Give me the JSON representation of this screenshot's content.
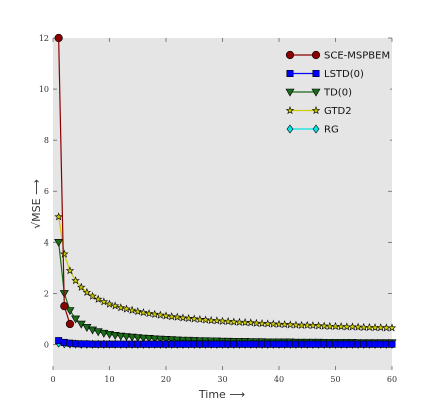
{
  "chart_data": {
    "type": "line",
    "xlabel": "Time ⟶",
    "ylabel": "√MSE ⟶",
    "xlim": [
      0,
      60
    ],
    "ylim": [
      -1,
      12
    ],
    "xticks": [
      "0",
      "10",
      "20",
      "30",
      "40",
      "50",
      "60"
    ],
    "yticks": [
      "0",
      "2",
      "4",
      "6",
      "8",
      "10",
      "12"
    ],
    "grid": false,
    "legend_position": "top-right",
    "series": [
      {
        "name": "SCE-MSPBEM",
        "color": "#8b0000",
        "marker": "circle",
        "x": [
          1,
          2,
          3
        ],
        "y": [
          12,
          1.5,
          0.8
        ]
      },
      {
        "name": "LSTD(0)",
        "color": "#0000ff",
        "marker": "square",
        "x": [
          1,
          2,
          3,
          4,
          5,
          6,
          7,
          8,
          9,
          10,
          11,
          12,
          13,
          14,
          15,
          16,
          17,
          18,
          19,
          20,
          21,
          22,
          23,
          24,
          25,
          26,
          27,
          28,
          29,
          30,
          31,
          32,
          33,
          34,
          35,
          36,
          37,
          38,
          39,
          40,
          41,
          42,
          43,
          44,
          45,
          46,
          47,
          48,
          49,
          50,
          51,
          52,
          53,
          54,
          55,
          56,
          57,
          58,
          59,
          60
        ],
        "y": [
          0.15,
          0.08,
          0.05,
          0.03,
          0.02,
          0.02,
          0.01,
          0.01,
          0.01,
          0.01,
          0.01,
          0.01,
          0.01,
          0.01,
          0.01,
          0.01,
          0.01,
          0.01,
          0.01,
          0.01,
          0.01,
          0.01,
          0.01,
          0.01,
          0.01,
          0.01,
          0.01,
          0.01,
          0.01,
          0.01,
          0.01,
          0.01,
          0.01,
          0.01,
          0.01,
          0.01,
          0.01,
          0.01,
          0.01,
          0.01,
          0.01,
          0.01,
          0.01,
          0.01,
          0.01,
          0.01,
          0.01,
          0.01,
          0.01,
          0.01,
          0.01,
          0.01,
          0.01,
          0.01,
          0.01,
          0.01,
          0.01,
          0.01,
          0.01,
          0.01
        ]
      },
      {
        "name": "TD(0)",
        "color": "#1a6b1a",
        "marker": "triangle-down",
        "x": [
          1,
          2,
          3,
          4,
          5,
          6,
          7,
          8,
          9,
          10,
          11,
          12,
          13,
          14,
          15,
          16,
          17,
          18,
          19,
          20,
          21,
          22,
          23,
          24,
          25,
          26,
          27,
          28,
          29,
          30,
          31,
          32,
          33,
          34,
          35,
          36,
          37,
          38,
          39,
          40,
          41,
          42,
          43,
          44,
          45,
          46,
          47,
          48,
          49,
          50,
          51,
          52,
          53,
          54,
          55,
          56,
          57,
          58,
          59,
          60
        ],
        "y": [
          4.0,
          2.0,
          1.33,
          1.0,
          0.8,
          0.67,
          0.57,
          0.5,
          0.44,
          0.4,
          0.36,
          0.33,
          0.31,
          0.29,
          0.27,
          0.25,
          0.24,
          0.22,
          0.21,
          0.2,
          0.19,
          0.18,
          0.17,
          0.17,
          0.16,
          0.15,
          0.15,
          0.14,
          0.14,
          0.13,
          0.13,
          0.12,
          0.12,
          0.12,
          0.11,
          0.11,
          0.11,
          0.1,
          0.1,
          0.1,
          0.1,
          0.1,
          0.09,
          0.09,
          0.09,
          0.09,
          0.09,
          0.08,
          0.08,
          0.08,
          0.08,
          0.08,
          0.08,
          0.07,
          0.07,
          0.07,
          0.07,
          0.07,
          0.07,
          0.07
        ]
      },
      {
        "name": "GTD2",
        "color": "#cccc00",
        "marker": "star",
        "x": [
          1,
          2,
          3,
          4,
          5,
          6,
          7,
          8,
          9,
          10,
          11,
          12,
          13,
          14,
          15,
          16,
          17,
          18,
          19,
          20,
          21,
          22,
          23,
          24,
          25,
          26,
          27,
          28,
          29,
          30,
          31,
          32,
          33,
          34,
          35,
          36,
          37,
          38,
          39,
          40,
          41,
          42,
          43,
          44,
          45,
          46,
          47,
          48,
          49,
          50,
          51,
          52,
          53,
          54,
          55,
          56,
          57,
          58,
          59,
          60
        ],
        "y": [
          5.0,
          3.54,
          2.89,
          2.5,
          2.24,
          2.04,
          1.89,
          1.77,
          1.67,
          1.58,
          1.51,
          1.44,
          1.39,
          1.34,
          1.29,
          1.25,
          1.21,
          1.18,
          1.15,
          1.12,
          1.09,
          1.07,
          1.04,
          1.02,
          1.0,
          0.98,
          0.96,
          0.94,
          0.93,
          0.91,
          0.9,
          0.88,
          0.87,
          0.86,
          0.85,
          0.83,
          0.82,
          0.81,
          0.8,
          0.79,
          0.78,
          0.77,
          0.76,
          0.75,
          0.75,
          0.74,
          0.73,
          0.72,
          0.71,
          0.71,
          0.7,
          0.69,
          0.69,
          0.68,
          0.67,
          0.67,
          0.66,
          0.66,
          0.65,
          0.65
        ]
      },
      {
        "name": "RG",
        "color": "#00e5e5",
        "marker": "diamond",
        "x": [
          1,
          2,
          3,
          4,
          5,
          6,
          7,
          8,
          9,
          10,
          11,
          12,
          13,
          14,
          15,
          16,
          17,
          18,
          19,
          20,
          21,
          22,
          23,
          24,
          25,
          26,
          27,
          28,
          29,
          30,
          31,
          32,
          33,
          34,
          35,
          36,
          37,
          38,
          39,
          40,
          41,
          42,
          43,
          44,
          45,
          46,
          47,
          48,
          49,
          50,
          51,
          52,
          53,
          54,
          55,
          56,
          57,
          58,
          59,
          60
        ],
        "y": [
          0.05,
          0.03,
          0.02,
          0.02,
          0.01,
          0.01,
          0.01,
          0.01,
          0.01,
          0.01,
          0.01,
          0.01,
          0.01,
          0.01,
          0.01,
          0.01,
          0.01,
          0.01,
          0.01,
          0.01,
          0.01,
          0.01,
          0.01,
          0.01,
          0.01,
          0.01,
          0.01,
          0.01,
          0.01,
          0.01,
          0.01,
          0.01,
          0.01,
          0.01,
          0.01,
          0.01,
          0.01,
          0.01,
          0.01,
          0.01,
          0.01,
          0.01,
          0.01,
          0.01,
          0.01,
          0.01,
          0.01,
          0.01,
          0.01,
          0.01,
          0.01,
          0.01,
          0.01,
          0.01,
          0.01,
          0.01,
          0.01,
          0.01,
          0.01,
          0.01
        ]
      }
    ]
  }
}
